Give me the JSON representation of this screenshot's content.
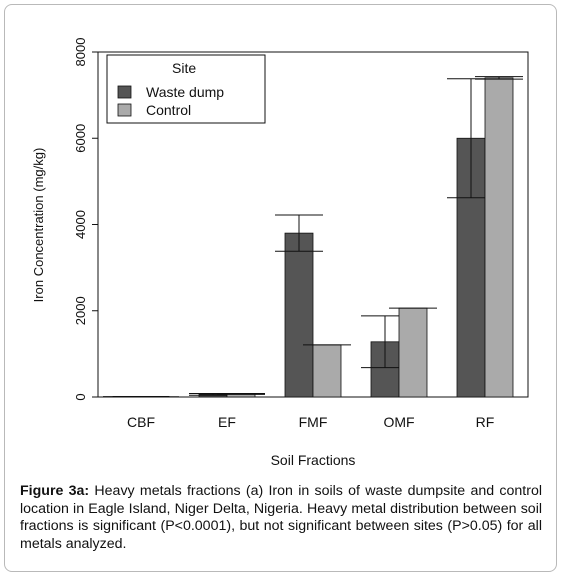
{
  "chart_data": {
    "type": "bar",
    "xlabel": "Soil Fractions",
    "ylabel": "Iron Concentration (mg/kg)",
    "ylim": [
      0,
      8000
    ],
    "yticks": [
      0,
      2000,
      4000,
      6000,
      8000
    ],
    "categories": [
      "CBF",
      "EF",
      "FMF",
      "OMF",
      "RF"
    ],
    "series": [
      {
        "name": "Waste dump",
        "color": "#555555",
        "values": [
          10,
          60,
          3800,
          1280,
          6000
        ],
        "error": [
          0,
          20,
          420,
          600,
          1380
        ]
      },
      {
        "name": "Control",
        "color": "#aaaaaa",
        "values": [
          5,
          70,
          1210,
          2060,
          7400
        ],
        "error": [
          0,
          10,
          0,
          0,
          30
        ]
      }
    ],
    "legend": {
      "title": "Site",
      "placement": "top-left"
    },
    "grid": false
  },
  "caption": {
    "label": "Figure 3a:",
    "text": " Heavy metals fractions (a) Iron in soils of waste dumpsite and control location in Eagle Island, Niger Delta, Nigeria. Heavy metal distribution between soil fractions is significant (P<0.0001), but not significant between sites (P>0.05) for all metals analyzed."
  }
}
